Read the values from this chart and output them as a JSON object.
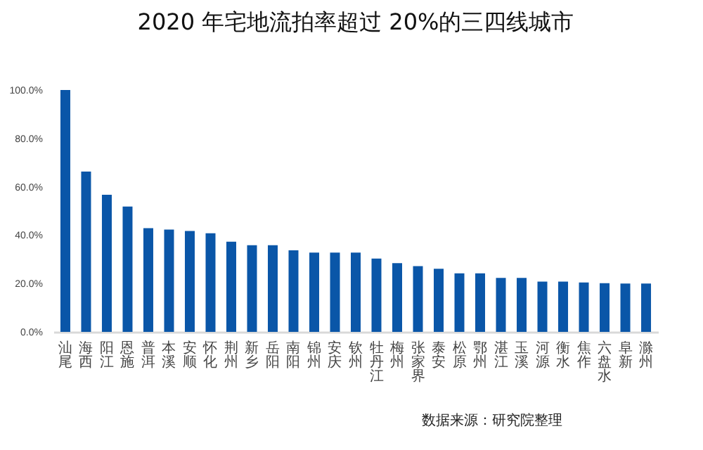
{
  "chart_data": {
    "type": "bar",
    "title": "2020 年宅地流拍率超过 20%的三四线城市",
    "categories": [
      "汕尾",
      "海西",
      "阳江",
      "恩施",
      "普洱",
      "本溪",
      "安顺",
      "怀化",
      "荆州",
      "新乡",
      "岳阳",
      "南阳",
      "锦州",
      "安庆",
      "钦州",
      "牡丹江",
      "梅州",
      "张家界",
      "泰安",
      "松原",
      "鄂州",
      "湛江",
      "玉溪",
      "河源",
      "衡水",
      "焦作",
      "六盘水",
      "阜新",
      "滁州"
    ],
    "values": [
      100,
      66.3,
      56.7,
      51.8,
      42.9,
      42.3,
      41.7,
      40.8,
      37.3,
      35.8,
      35.8,
      33.7,
      32.8,
      32.8,
      32.8,
      30.3,
      28.4,
      27.2,
      26.1,
      24.2,
      24.2,
      22.3,
      22.3,
      20.8,
      20.8,
      20.4,
      20.1,
      20.0,
      20.0
    ],
    "color": "#0a56a8",
    "ylim": [
      0,
      100
    ],
    "yticks": [
      {
        "value": 0,
        "label": "0.0%"
      },
      {
        "value": 20,
        "label": "20.0%"
      },
      {
        "value": 40,
        "label": "40.0%"
      },
      {
        "value": 60,
        "label": "60.0%"
      },
      {
        "value": 80,
        "label": "80.0%"
      },
      {
        "value": 100,
        "label": "100.0%"
      }
    ],
    "grid": false,
    "annotations": [
      "数据来源：研究院整理"
    ]
  }
}
